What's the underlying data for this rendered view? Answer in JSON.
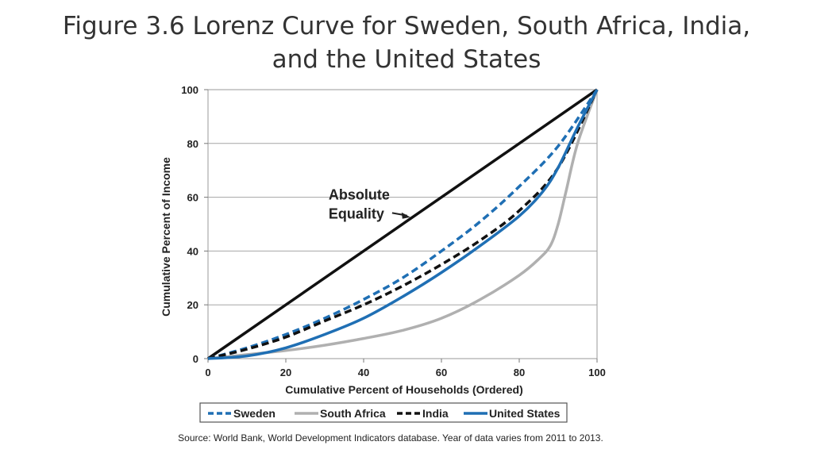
{
  "slide": {
    "title_line1": "Figure 3.6 Lorenz Curve for Sweden, South Africa, India,",
    "title_line2": "and the United States",
    "source": "Source: World Bank, World Development Indicators database. Year of data varies from 2011 to 2013."
  },
  "chart_data": {
    "type": "line",
    "xlabel": "Cumulative Percent of Households (Ordered)",
    "ylabel": "Cumulative Percent of Income",
    "xlim": [
      0,
      100
    ],
    "ylim": [
      0,
      100
    ],
    "xticks": [
      0,
      20,
      40,
      60,
      80,
      100
    ],
    "yticks": [
      0,
      20,
      40,
      60,
      80,
      100
    ],
    "grid": "horizontal",
    "legend_position": "bottom",
    "annotation": {
      "line1": "Absolute",
      "line2": "Equality",
      "points_to": [
        52,
        52
      ],
      "text_at": [
        31,
        58
      ]
    },
    "series": [
      {
        "name": "Absolute Equality",
        "legend": false,
        "color": "#111111",
        "dash": "solid",
        "x": [
          0,
          100
        ],
        "y": [
          0,
          100
        ]
      },
      {
        "name": "Sweden",
        "legend": true,
        "color": "#1f6fb4",
        "dash": "dashed",
        "x": [
          0,
          10,
          20,
          30,
          40,
          50,
          60,
          70,
          80,
          90,
          100
        ],
        "y": [
          0,
          4,
          9,
          15,
          22,
          30,
          40,
          51,
          64,
          79,
          100
        ]
      },
      {
        "name": "South Africa",
        "legend": true,
        "color": "#b0b0b0",
        "dash": "solid",
        "x": [
          0,
          10,
          20,
          30,
          40,
          50,
          60,
          70,
          80,
          85,
          88,
          90,
          92,
          95,
          100
        ],
        "y": [
          0,
          1.5,
          3,
          5,
          7.5,
          10.5,
          15,
          22,
          31,
          37,
          42,
          50,
          62,
          80,
          100
        ]
      },
      {
        "name": "India",
        "legend": true,
        "color": "#111111",
        "dash": "dashed",
        "x": [
          0,
          10,
          20,
          30,
          40,
          50,
          60,
          70,
          80,
          90,
          100
        ],
        "y": [
          0,
          3.5,
          8,
          14,
          20,
          27,
          35,
          44,
          55,
          71,
          100
        ]
      },
      {
        "name": "United States",
        "legend": true,
        "color": "#1f6fb4",
        "dash": "solid",
        "x": [
          0,
          10,
          20,
          30,
          40,
          50,
          60,
          70,
          80,
          86,
          90,
          95,
          100
        ],
        "y": [
          0,
          1,
          4,
          9,
          15,
          23,
          32,
          42,
          53,
          62,
          71,
          86,
          100
        ]
      }
    ]
  }
}
